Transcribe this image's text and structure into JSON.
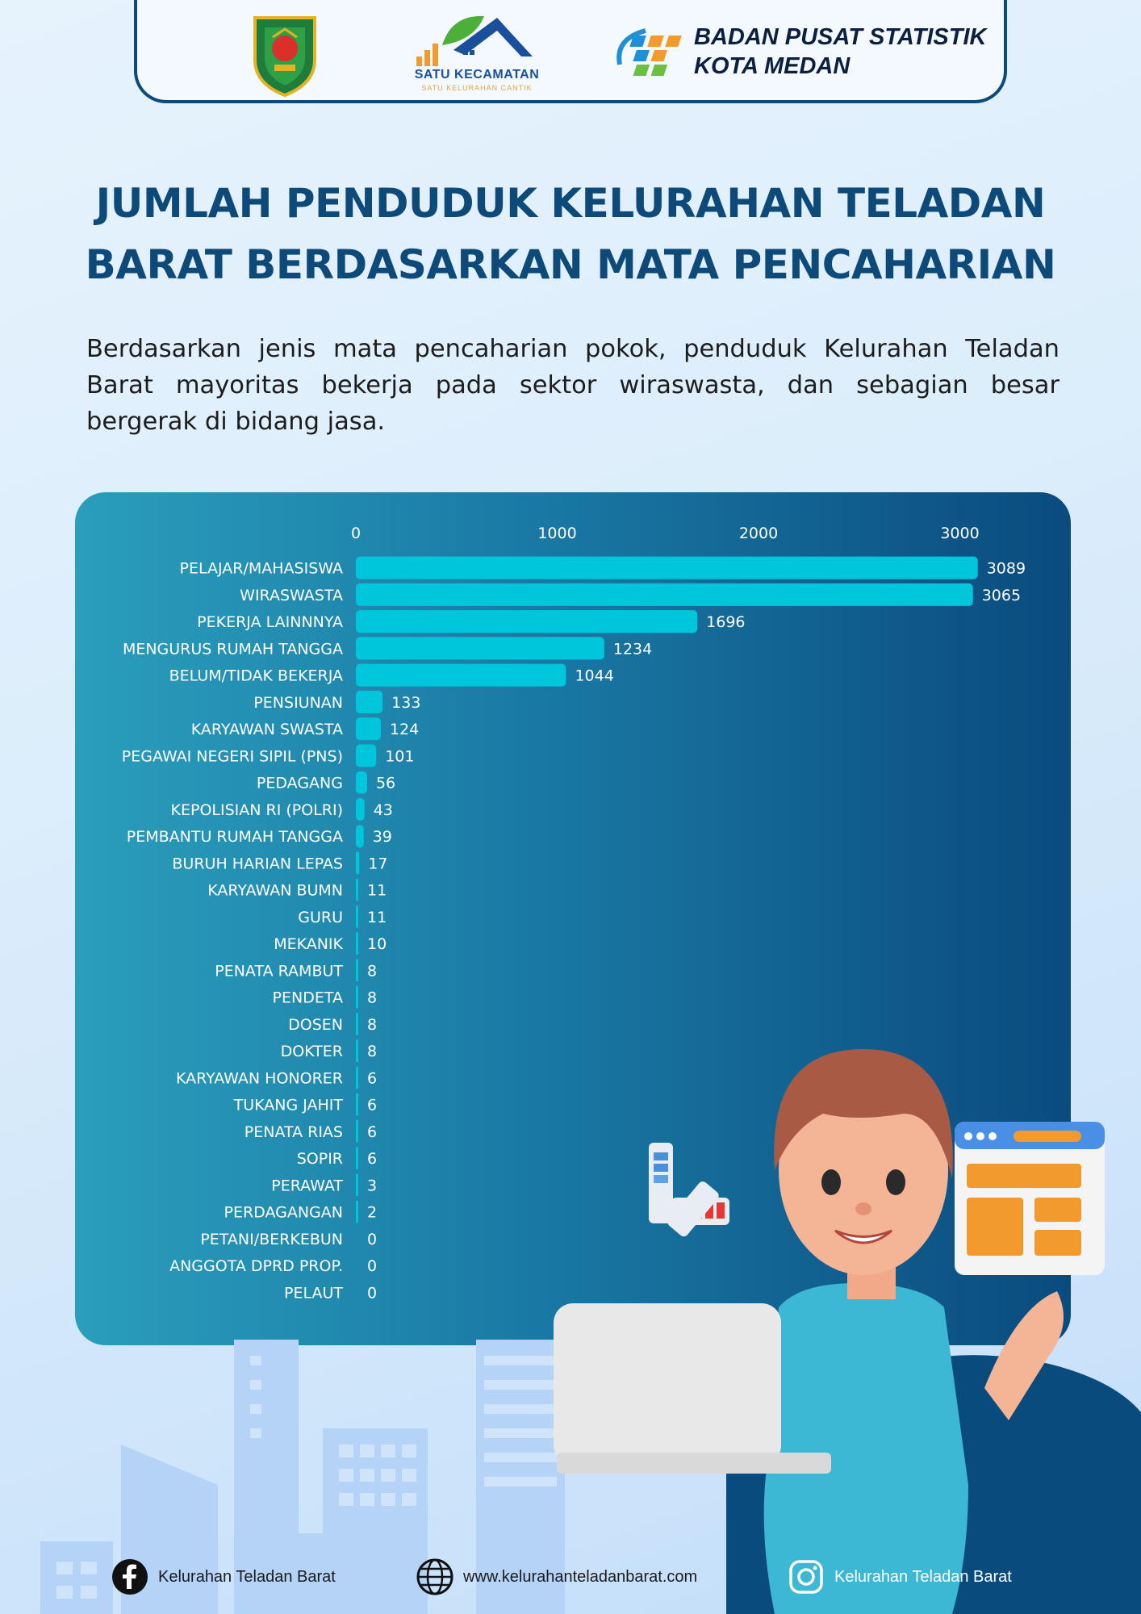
{
  "header": {
    "logo_satu_name": "SATU KECAMATAN",
    "logo_satu_sub": "SATU KELURAHAN CANTIK",
    "bps_line1": "BADAN PUSAT STATISTIK",
    "bps_line2": "KOTA MEDAN"
  },
  "title_line1": "JUMLAH PENDUDUK KELURAHAN TELADAN",
  "title_line2": "BARAT BERDASARKAN MATA PENCAHARIAN",
  "description": "Berdasarkan jenis mata pencaharian pokok, penduduk Kelurahan Teladan Barat mayoritas bekerja pada sektor wiraswasta, dan sebagian besar bergerak di bidang jasa.",
  "colors": {
    "bar": "#00c6db",
    "title": "#0d4a7a",
    "panel_start": "#2a9ebc",
    "panel_end": "#0a4b7e"
  },
  "chart_data": {
    "type": "bar",
    "orientation": "horizontal",
    "title": "",
    "xlabel": "",
    "ylabel": "",
    "xlim": [
      0,
      3200
    ],
    "ticks": [
      0,
      1000,
      2000,
      3000
    ],
    "tick_position": "top",
    "grid": false,
    "categories": [
      "PELAJAR/MAHASISWA",
      "WIRASWASTA",
      "PEKERJA LAINNNYA",
      "MENGURUS RUMAH TANGGA",
      "BELUM/TIDAK BEKERJA",
      "PENSIUNAN",
      "KARYAWAN SWASTA",
      "PEGAWAI NEGERI SIPIL (PNS)",
      "PEDAGANG",
      "KEPOLISIAN RI (POLRI)",
      "PEMBANTU RUMAH TANGGA",
      "BURUH HARIAN LEPAS",
      "KARYAWAN BUMN",
      "GURU",
      "MEKANIK",
      "PENATA RAMBUT",
      "PENDETA",
      "DOSEN",
      "DOKTER",
      "KARYAWAN HONORER",
      "TUKANG JAHIT",
      "PENATA RIAS",
      "SOPIR",
      "PERAWAT",
      "PERDAGANGAN",
      "PETANI/BERKEBUN",
      "ANGGOTA DPRD PROP.",
      "PELAUT"
    ],
    "values": [
      3089,
      3065,
      1696,
      1234,
      1044,
      133,
      124,
      101,
      56,
      43,
      39,
      17,
      11,
      11,
      10,
      8,
      8,
      8,
      8,
      6,
      6,
      6,
      6,
      3,
      2,
      0,
      0,
      0
    ]
  },
  "footer": {
    "facebook_icon": "facebook-icon",
    "facebook_text": "Kelurahan Teladan Barat",
    "web_icon": "globe-icon",
    "web_text": "www.kelurahanteladanbarat.com",
    "instagram_icon": "instagram-icon",
    "instagram_text": "Kelurahan Teladan Barat"
  }
}
